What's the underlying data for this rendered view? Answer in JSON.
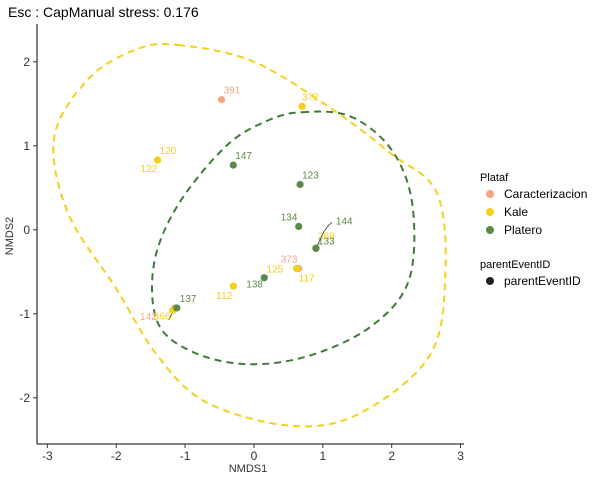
{
  "chart_data": {
    "type": "scatter",
    "title": "Esc : CapManual stress: 0.176",
    "xlabel": "NMDS1",
    "ylabel": "NMDS2",
    "xlim": [
      -3.15,
      3.05
    ],
    "ylim": [
      -2.55,
      2.45
    ],
    "x_ticks": [
      -3,
      -2,
      -1,
      0,
      1,
      2,
      3
    ],
    "y_ticks": [
      -2,
      -1,
      0,
      1,
      2
    ],
    "grid": false,
    "legend": {
      "placement": "right",
      "groups": [
        {
          "title": "Plataf",
          "entries": [
            "Caracterizacion",
            "Kale",
            "Platero"
          ]
        },
        {
          "title": "parentEventID",
          "entries": [
            "parentEventID"
          ]
        }
      ]
    },
    "colors": {
      "Caracterizacion": "#F4A582",
      "Kale": "#F5D01A",
      "Platero": "#5A8A4A",
      "Kale_ellipse": "#F5D01A",
      "Platero_ellipse": "#3F7A3A"
    },
    "series": [
      {
        "name": "Caracterizacion",
        "points": [
          {
            "label": "391",
            "x": -0.47,
            "y": 1.55
          },
          {
            "label": "373",
            "x": 0.65,
            "y": -0.46
          },
          {
            "label": "142",
            "x": -1.15,
            "y": -0.93
          }
        ]
      },
      {
        "name": "Kale",
        "points": [
          {
            "label": "372",
            "x": 0.7,
            "y": 1.47
          },
          {
            "label": "120",
            "x": -1.4,
            "y": 0.83
          },
          {
            "label": "122",
            "x": -1.4,
            "y": 0.83
          },
          {
            "label": "112",
            "x": -0.3,
            "y": -0.67
          },
          {
            "label": "125",
            "x": 0.62,
            "y": -0.46
          },
          {
            "label": "117",
            "x": 0.62,
            "y": -0.46
          },
          {
            "label": "368",
            "x": 0.9,
            "y": -0.22
          },
          {
            "label": "366",
            "x": -1.18,
            "y": -0.96
          }
        ]
      },
      {
        "name": "Platero",
        "points": [
          {
            "label": "147",
            "x": -0.3,
            "y": 0.77
          },
          {
            "label": "123",
            "x": 0.67,
            "y": 0.54
          },
          {
            "label": "134",
            "x": 0.65,
            "y": 0.04
          },
          {
            "label": "144",
            "x": 0.9,
            "y": -0.22
          },
          {
            "label": "133",
            "x": 0.9,
            "y": -0.22
          },
          {
            "label": "138",
            "x": 0.15,
            "y": -0.57
          },
          {
            "label": "137",
            "x": -1.12,
            "y": -0.93
          }
        ]
      }
    ],
    "ellipses": [
      {
        "name": "Kale",
        "path": [
          [
            -1.1,
            2.2
          ],
          [
            0.0,
            2.0
          ],
          [
            1.2,
            1.4
          ],
          [
            2.0,
            0.9
          ],
          [
            2.65,
            0.45
          ],
          [
            2.78,
            -0.5
          ],
          [
            2.55,
            -1.5
          ],
          [
            1.5,
            -2.2
          ],
          [
            0.5,
            -2.33
          ],
          [
            -0.7,
            -2.05
          ],
          [
            -1.4,
            -1.5
          ],
          [
            -2.0,
            -0.7
          ],
          [
            -2.7,
            0.2
          ],
          [
            -2.9,
            1.1
          ],
          [
            -2.4,
            1.8
          ],
          [
            -1.7,
            2.15
          ],
          [
            -1.1,
            2.2
          ]
        ]
      },
      {
        "name": "Platero",
        "path": [
          [
            0.7,
            1.4
          ],
          [
            1.4,
            1.35
          ],
          [
            2.0,
            0.95
          ],
          [
            2.3,
            0.3
          ],
          [
            2.25,
            -0.6
          ],
          [
            1.7,
            -1.15
          ],
          [
            0.8,
            -1.5
          ],
          [
            -0.1,
            -1.6
          ],
          [
            -0.9,
            -1.45
          ],
          [
            -1.4,
            -1.1
          ],
          [
            -1.45,
            -0.4
          ],
          [
            -1.1,
            0.3
          ],
          [
            -0.4,
            1.0
          ],
          [
            0.2,
            1.3
          ],
          [
            0.7,
            1.4
          ]
        ]
      }
    ]
  }
}
